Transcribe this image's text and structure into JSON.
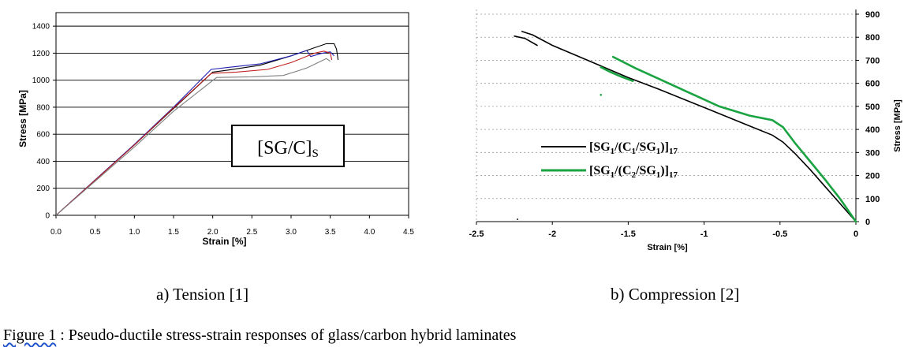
{
  "chart_data": [
    {
      "type": "line",
      "panel": "a",
      "xlabel": "Strain [%]",
      "ylabel": "Stress [MPa]",
      "xlim": [
        0,
        4.5
      ],
      "ylim": [
        0,
        1500
      ],
      "xticks": [
        "0.0",
        "0.5",
        "1.0",
        "1.5",
        "2.0",
        "2.5",
        "3.0",
        "3.5",
        "4.0",
        "4.5"
      ],
      "yticks": [
        "0",
        "200",
        "400",
        "600",
        "800",
        "1000",
        "1200",
        "1400"
      ],
      "grid": "horizontal",
      "annotation": {
        "main": "[SG/C]",
        "sub": "S"
      },
      "series": [
        {
          "color": "#000000",
          "points": [
            [
              0,
              0
            ],
            [
              1.0,
              520
            ],
            [
              1.5,
              790
            ],
            [
              2.0,
              1060
            ],
            [
              2.2,
              1075
            ],
            [
              2.6,
              1110
            ],
            [
              3.0,
              1180
            ],
            [
              3.3,
              1240
            ],
            [
              3.45,
              1270
            ],
            [
              3.55,
              1270
            ],
            [
              3.58,
              1230
            ],
            [
              3.6,
              1150
            ]
          ]
        },
        {
          "color": "#1f1fb0",
          "points": [
            [
              0,
              0
            ],
            [
              1.0,
              525
            ],
            [
              1.5,
              800
            ],
            [
              1.98,
              1080
            ],
            [
              2.2,
              1095
            ],
            [
              2.6,
              1120
            ],
            [
              3.0,
              1180
            ],
            [
              3.2,
              1220
            ],
            [
              3.25,
              1175
            ],
            [
              3.4,
              1200
            ],
            [
              3.5,
              1210
            ],
            [
              3.55,
              1180
            ]
          ]
        },
        {
          "color": "#c0201f",
          "points": [
            [
              0,
              0
            ],
            [
              1.0,
              520
            ],
            [
              1.5,
              795
            ],
            [
              1.98,
              1050
            ],
            [
              2.3,
              1060
            ],
            [
              2.7,
              1080
            ],
            [
              3.0,
              1130
            ],
            [
              3.3,
              1200
            ],
            [
              3.42,
              1215
            ],
            [
              3.5,
              1200
            ],
            [
              3.52,
              1150
            ]
          ]
        },
        {
          "color": "#808080",
          "points": [
            [
              0,
              0
            ],
            [
              1.0,
              505
            ],
            [
              1.5,
              770
            ],
            [
              2.05,
              1020
            ],
            [
              2.5,
              1025
            ],
            [
              2.9,
              1035
            ],
            [
              3.2,
              1090
            ],
            [
              3.45,
              1160
            ],
            [
              3.5,
              1140
            ]
          ]
        }
      ]
    },
    {
      "type": "line",
      "panel": "b",
      "xlabel": "Strain [%]",
      "ylabel": "Stress [MPa]",
      "xlim": [
        -2.5,
        0
      ],
      "ylim": [
        0,
        900
      ],
      "xticks": [
        "-2.5",
        "-2",
        "-1.5",
        "-1",
        "-0.5",
        "0"
      ],
      "yticks": [
        "0",
        "100",
        "200",
        "300",
        "400",
        "500",
        "600",
        "700",
        "800",
        "900"
      ],
      "grid": "horizontal-dashed",
      "legend_position": "center",
      "series": [
        {
          "color": "#000000",
          "legend": {
            "base": "[SG",
            "s1": "1",
            "mid1": "/(C",
            "s2": "1",
            "mid2": "/SG",
            "s3": "1",
            "end": ")]",
            "s4": "17"
          },
          "segments": [
            [
              [
                0,
                0
              ],
              [
                -0.1,
                75
              ],
              [
                -0.2,
                150
              ],
              [
                -0.3,
                225
              ],
              [
                -0.4,
                295
              ],
              [
                -0.48,
                345
              ],
              [
                -0.55,
                375
              ],
              [
                -0.7,
                415
              ],
              [
                -1.0,
                495
              ],
              [
                -1.3,
                575
              ],
              [
                -1.5,
                625
              ],
              [
                -1.75,
                695
              ],
              [
                -2.0,
                765
              ],
              [
                -2.13,
                810
              ],
              [
                -2.2,
                825
              ]
            ],
            [
              [
                -2.1,
                765
              ],
              [
                -2.18,
                795
              ],
              [
                -2.25,
                805
              ]
            ]
          ]
        },
        {
          "color": "#1aa341",
          "legend": {
            "base": "[SG",
            "s1": "1",
            "mid1": "/(C",
            "s2": "2",
            "mid2": "/SG",
            "s3": "1",
            "end": ")]",
            "s4": "17"
          },
          "segments": [
            [
              [
                0,
                0
              ],
              [
                -0.1,
                95
              ],
              [
                -0.2,
                180
              ],
              [
                -0.3,
                260
              ],
              [
                -0.4,
                340
              ],
              [
                -0.48,
                410
              ],
              [
                -0.55,
                440
              ],
              [
                -0.7,
                460
              ],
              [
                -0.9,
                500
              ],
              [
                -1.1,
                560
              ],
              [
                -1.3,
                620
              ],
              [
                -1.45,
                665
              ],
              [
                -1.6,
                715
              ]
            ],
            [
              [
                -1.47,
                610
              ],
              [
                -1.55,
                630
              ],
              [
                -1.62,
                650
              ],
              [
                -1.68,
                670
              ]
            ]
          ]
        }
      ]
    }
  ],
  "captions": {
    "a": "a)     Tension [1]",
    "b": "b) Compression [2]",
    "figure_label": "Figure 1",
    "figure_text": " : Pseudo-ductile stress-strain responses of glass/carbon hybrid laminates"
  }
}
